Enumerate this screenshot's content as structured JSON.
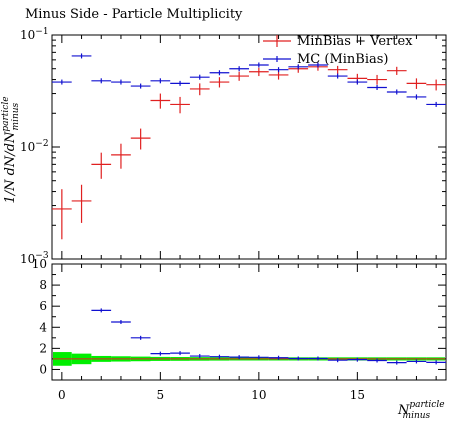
{
  "colors": {
    "data": "#e02020",
    "mc": "#1010d0",
    "band": "#00ee00",
    "frame": "#000000"
  },
  "chart_data": [
    {
      "type": "scatter",
      "title": "Minus Side - Particle Multiplicity",
      "ylabel": "1/N dN/dN^{particle}_{minus}",
      "ylabel_main": "1/N dN/dN",
      "ylabel_sup": "particle",
      "ylabel_sub": "minus",
      "yscale": "log",
      "xlim": [
        -0.5,
        19.5
      ],
      "ylim": [
        0.001,
        0.1
      ],
      "ytick_labels": [
        {
          "value": 0.1,
          "base": "10",
          "exp": "−1"
        },
        {
          "value": 0.01,
          "base": "10",
          "exp": "−2"
        },
        {
          "value": 0.001,
          "base": "10",
          "exp": "−3"
        }
      ],
      "legend": {
        "placement": "top-right",
        "entries": [
          "MinBias + Vertex",
          "MC (MinBias)"
        ]
      },
      "series": [
        {
          "name": "MinBias + Vertex",
          "color": "#e02020",
          "x": [
            0,
            1,
            2,
            3,
            4,
            5,
            6,
            7,
            8,
            9,
            10,
            11,
            12,
            13,
            14,
            15,
            16,
            17,
            18,
            19
          ],
          "y": [
            0.0028,
            0.0033,
            0.007,
            0.0085,
            0.012,
            0.026,
            0.024,
            0.033,
            0.038,
            0.043,
            0.047,
            0.044,
            0.05,
            0.052,
            0.049,
            0.041,
            0.04,
            0.048,
            0.037,
            0.036
          ],
          "yerr_lo": [
            0.0013,
            0.0012,
            0.0018,
            0.0021,
            0.0025,
            0.004,
            0.004,
            0.004,
            0.004,
            0.004,
            0.004,
            0.004,
            0.004,
            0.004,
            0.004,
            0.004,
            0.004,
            0.004,
            0.004,
            0.004
          ],
          "yerr_hi": [
            0.0014,
            0.0013,
            0.0019,
            0.0022,
            0.0026,
            0.004,
            0.004,
            0.004,
            0.004,
            0.004,
            0.004,
            0.004,
            0.004,
            0.004,
            0.004,
            0.004,
            0.004,
            0.004,
            0.004,
            0.004
          ]
        },
        {
          "name": "MC (MinBias)",
          "color": "#1010d0",
          "x": [
            0,
            1,
            2,
            3,
            4,
            5,
            6,
            7,
            8,
            9,
            10,
            11,
            12,
            13,
            14,
            15,
            16,
            17,
            18,
            19
          ],
          "y": [
            0.038,
            0.065,
            0.039,
            0.038,
            0.035,
            0.039,
            0.037,
            0.042,
            0.046,
            0.05,
            0.054,
            0.049,
            0.052,
            0.054,
            0.043,
            0.038,
            0.034,
            0.031,
            0.028,
            0.024
          ]
        }
      ]
    },
    {
      "type": "scatter",
      "title": "",
      "xlabel": "N^{particle}_{minus}",
      "xlabel_main": "N",
      "xlabel_sup": "particle",
      "xlabel_sub": "minus",
      "xlim": [
        -0.5,
        19.5
      ],
      "ylim": [
        -1,
        10
      ],
      "xticks": [
        0,
        5,
        10,
        15
      ],
      "xtick_labels": [
        "0",
        "5",
        "10",
        "15"
      ],
      "yticks": [
        0,
        2,
        4,
        6,
        8,
        10
      ],
      "ytick_labels": [
        "0",
        "2",
        "4",
        "6",
        "8",
        "10"
      ],
      "band": {
        "center": 1,
        "halfwidth": [
          0.65,
          0.5,
          0.28,
          0.25,
          0.22,
          0.19,
          0.18,
          0.17,
          0.16,
          0.15,
          0.15,
          0.15,
          0.15,
          0.15,
          0.15,
          0.15,
          0.15,
          0.15,
          0.15,
          0.15
        ]
      },
      "series": [
        {
          "name": "MC (MinBias)",
          "color": "#1010d0",
          "x": [
            2,
            3,
            4,
            5,
            6,
            7,
            8,
            9,
            10,
            11,
            12,
            13,
            14,
            15,
            16,
            17,
            18,
            19
          ],
          "y": [
            5.6,
            4.5,
            3.0,
            1.5,
            1.55,
            1.27,
            1.21,
            1.17,
            1.15,
            1.11,
            1.04,
            1.04,
            0.88,
            0.93,
            0.85,
            0.65,
            0.76,
            0.67
          ]
        }
      ]
    }
  ]
}
